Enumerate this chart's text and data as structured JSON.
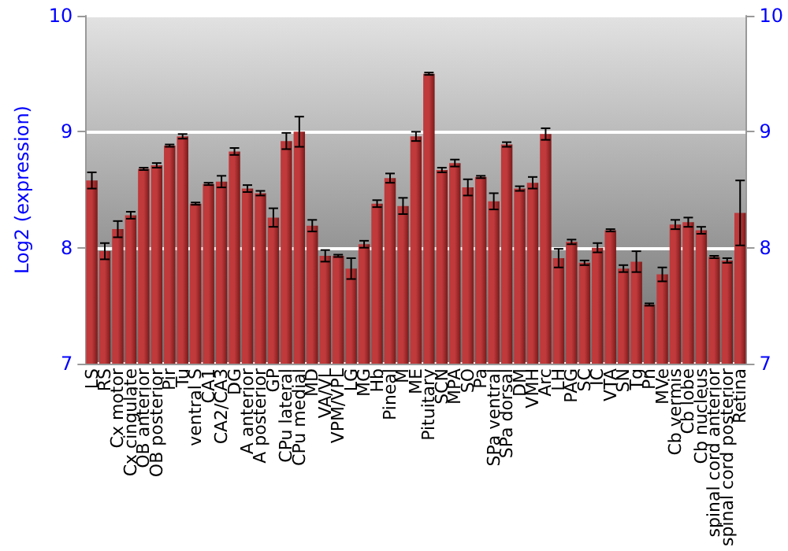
{
  "chart_data": {
    "type": "bar",
    "ylabel": "Log2 (expression)",
    "categories": [
      "LS",
      "RS",
      "Cx motor",
      "Cx cingulate",
      "OB anterior",
      "OB posterior",
      "Pir",
      "Tu",
      "ventral S",
      "CA1",
      "CA2/CA3",
      "DG",
      "A anterior",
      "A posterior",
      "GP",
      "CPu lateral",
      "CPu medial",
      "MD",
      "VA/VL",
      "VPM/VPL",
      "LG",
      "MG",
      "Hb",
      "Pineal",
      "M",
      "ME",
      "Pituitary",
      "SCN",
      "MPA",
      "SO",
      "Pa",
      "SPa ventral",
      "SPa dorsal",
      "DM",
      "VMH",
      "Arc",
      "LH",
      "PAG",
      "SC",
      "IC",
      "VTA",
      "SN",
      "Tg",
      "Pn",
      "MVe",
      "Cb vermis",
      "Cb lobe",
      "Cb nucleus",
      "spinal cord anterior",
      "spinal cord posterior",
      "Retina"
    ],
    "series": [
      {
        "color": "#c0393b",
        "values": [
          8.58,
          7.97,
          8.16,
          8.28,
          8.68,
          8.71,
          8.88,
          8.96,
          8.38,
          8.55,
          8.57,
          8.83,
          8.51,
          8.47,
          8.26,
          8.92,
          9.0,
          8.19,
          7.93,
          7.93,
          7.82,
          8.03,
          8.38,
          8.6,
          8.36,
          8.96,
          9.5,
          8.67,
          8.73,
          8.52,
          8.61,
          8.4,
          8.89,
          8.51,
          8.56,
          8.98,
          7.91,
          8.05,
          7.87,
          8.0,
          8.15,
          7.82,
          7.88,
          7.51,
          7.77,
          8.2,
          8.22,
          8.15,
          7.92,
          7.89,
          8.3
        ],
        "errors": [
          0.07,
          0.07,
          0.07,
          0.03,
          0.01,
          0.02,
          0.01,
          0.02,
          0.01,
          0.01,
          0.05,
          0.03,
          0.03,
          0.02,
          0.08,
          0.07,
          0.13,
          0.05,
          0.05,
          0.01,
          0.09,
          0.03,
          0.03,
          0.04,
          0.07,
          0.04,
          0.01,
          0.02,
          0.03,
          0.07,
          0.01,
          0.07,
          0.02,
          0.02,
          0.05,
          0.05,
          0.08,
          0.02,
          0.02,
          0.04,
          0.01,
          0.03,
          0.09,
          0.01,
          0.06,
          0.04,
          0.04,
          0.03,
          0.01,
          0.02,
          0.28
        ]
      }
    ],
    "ylim": [
      7,
      10
    ],
    "yticks": [
      7,
      8,
      9,
      10
    ],
    "y2lim": [
      7,
      10
    ],
    "y2ticks": [
      7,
      8,
      9,
      10
    ],
    "grid": "y",
    "legend": false
  }
}
